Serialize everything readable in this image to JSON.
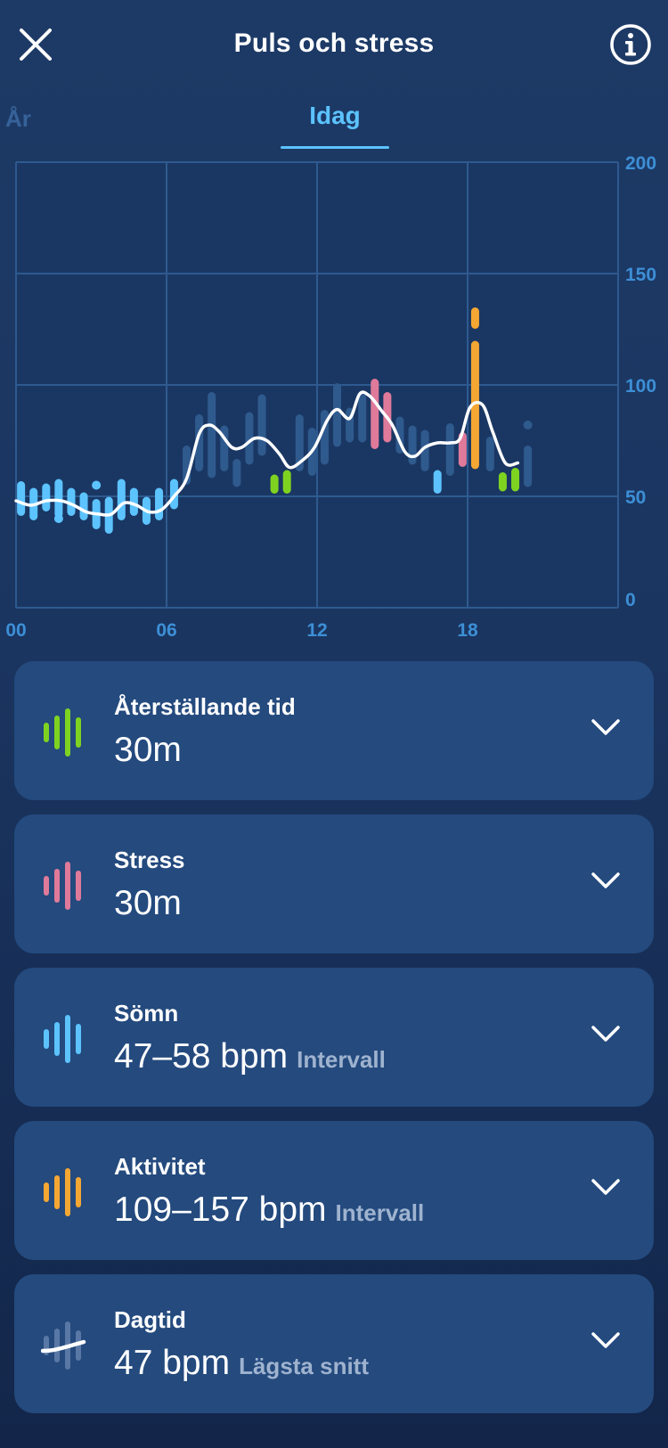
{
  "header": {
    "title": "Puls och stress",
    "close_icon": "close-icon",
    "info_icon": "info-icon"
  },
  "tabs": {
    "previous_label": "År",
    "active_label": "Idag"
  },
  "chart_data": {
    "type": "bar",
    "x_ticks": [
      "00",
      "06",
      "12",
      "18"
    ],
    "y_ticks": [
      "0",
      "50",
      "100",
      "150",
      "200"
    ],
    "ylim": [
      0,
      200
    ],
    "xlim": [
      0,
      24
    ],
    "grid": true,
    "series_colors": {
      "recovery": "#7ed321",
      "stress": "#e07a9a",
      "sleep": "#5cc3ff",
      "activity": "#f5a733",
      "other": "#2f5a8e",
      "daytime_line": "#ffffff"
    },
    "bars": [
      {
        "x": 0.2,
        "low": 43,
        "high": 55,
        "kind": "sleep"
      },
      {
        "x": 0.7,
        "low": 41,
        "high": 52,
        "kind": "sleep"
      },
      {
        "x": 1.2,
        "low": 45,
        "high": 54,
        "kind": "sleep"
      },
      {
        "x": 1.7,
        "low": 42,
        "high": 56,
        "kind": "sleep"
      },
      {
        "x": 2.2,
        "low": 43,
        "high": 52,
        "kind": "sleep"
      },
      {
        "x": 2.7,
        "low": 41,
        "high": 50,
        "kind": "sleep"
      },
      {
        "x": 3.2,
        "low": 37,
        "high": 47,
        "kind": "sleep"
      },
      {
        "x": 3.7,
        "low": 35,
        "high": 48,
        "kind": "sleep"
      },
      {
        "x": 4.2,
        "low": 41,
        "high": 56,
        "kind": "sleep"
      },
      {
        "x": 4.7,
        "low": 43,
        "high": 52,
        "kind": "sleep"
      },
      {
        "x": 5.2,
        "low": 39,
        "high": 48,
        "kind": "sleep"
      },
      {
        "x": 5.7,
        "low": 41,
        "high": 52,
        "kind": "sleep"
      },
      {
        "x": 6.3,
        "low": 46,
        "high": 56,
        "kind": "sleep"
      },
      {
        "x": 6.8,
        "low": 57,
        "high": 71,
        "kind": "other"
      },
      {
        "x": 7.3,
        "low": 63,
        "high": 85,
        "kind": "other"
      },
      {
        "x": 7.8,
        "low": 60,
        "high": 95,
        "kind": "other"
      },
      {
        "x": 8.3,
        "low": 63,
        "high": 80,
        "kind": "other"
      },
      {
        "x": 8.8,
        "low": 56,
        "high": 65,
        "kind": "other"
      },
      {
        "x": 9.3,
        "low": 66,
        "high": 86,
        "kind": "other"
      },
      {
        "x": 9.8,
        "low": 70,
        "high": 94,
        "kind": "other"
      },
      {
        "x": 10.3,
        "low": 53,
        "high": 58,
        "kind": "recovery"
      },
      {
        "x": 10.8,
        "low": 53,
        "high": 60,
        "kind": "recovery"
      },
      {
        "x": 11.3,
        "low": 63,
        "high": 85,
        "kind": "other"
      },
      {
        "x": 11.8,
        "low": 61,
        "high": 79,
        "kind": "other"
      },
      {
        "x": 12.3,
        "low": 66,
        "high": 87,
        "kind": "other"
      },
      {
        "x": 12.8,
        "low": 74,
        "high": 99,
        "kind": "other"
      },
      {
        "x": 13.3,
        "low": 76,
        "high": 88,
        "kind": "other"
      },
      {
        "x": 13.8,
        "low": 76,
        "high": 95,
        "kind": "other"
      },
      {
        "x": 14.3,
        "low": 73,
        "high": 101,
        "kind": "stress"
      },
      {
        "x": 14.8,
        "low": 76,
        "high": 95,
        "kind": "stress"
      },
      {
        "x": 15.3,
        "low": 71,
        "high": 84,
        "kind": "other"
      },
      {
        "x": 15.8,
        "low": 66,
        "high": 80,
        "kind": "other"
      },
      {
        "x": 16.3,
        "low": 63,
        "high": 78,
        "kind": "other"
      },
      {
        "x": 16.8,
        "low": 53,
        "high": 60,
        "kind": "sleep"
      },
      {
        "x": 17.3,
        "low": 61,
        "high": 81,
        "kind": "other"
      },
      {
        "x": 17.8,
        "low": 65,
        "high": 77,
        "kind": "stress"
      },
      {
        "x": 18.3,
        "low": 64,
        "high": 118,
        "kind": "activity"
      },
      {
        "x": 18.3,
        "low": 127,
        "high": 133,
        "kind": "activity"
      },
      {
        "x": 18.9,
        "low": 63,
        "high": 75,
        "kind": "other"
      },
      {
        "x": 19.4,
        "low": 54,
        "high": 59,
        "kind": "recovery"
      },
      {
        "x": 19.9,
        "low": 54,
        "high": 61,
        "kind": "recovery"
      },
      {
        "x": 20.4,
        "low": 56,
        "high": 71,
        "kind": "other"
      }
    ],
    "dots": [
      {
        "x": 1.7,
        "y": 40,
        "kind": "sleep"
      },
      {
        "x": 3.2,
        "y": 55,
        "kind": "sleep"
      },
      {
        "x": 20.4,
        "y": 82,
        "kind": "other"
      }
    ],
    "daytime_line": {
      "x": [
        0,
        0.6,
        1.2,
        1.8,
        2.3,
        2.8,
        3.3,
        3.8,
        4.3,
        4.8,
        5.3,
        5.8,
        6.3,
        6.8,
        7.3,
        7.7,
        8.1,
        8.6,
        9.0,
        9.5,
        10.0,
        10.5,
        10.9,
        11.4,
        11.9,
        12.4,
        12.8,
        13.3,
        13.7,
        14.1,
        14.6,
        15.0,
        15.5,
        15.9,
        16.3,
        16.8,
        17.3,
        17.7,
        18.1,
        18.6,
        19.0,
        19.5,
        20.0
      ],
      "y": [
        48,
        46,
        48,
        48,
        46,
        43,
        42,
        42,
        47,
        46,
        43,
        44,
        50,
        58,
        78,
        82,
        79,
        72,
        72,
        76,
        75,
        69,
        63,
        66,
        72,
        84,
        89,
        85,
        96,
        95,
        88,
        82,
        70,
        68,
        72,
        74,
        74,
        76,
        90,
        91,
        79,
        65,
        65
      ]
    }
  },
  "cards": [
    {
      "label": "Återställande tid",
      "value": "30m",
      "suffix": "",
      "icon": "recovery-bars-icon",
      "color": "#7ed321"
    },
    {
      "label": "Stress",
      "value": "30m",
      "suffix": "",
      "icon": "stress-bars-icon",
      "color": "#e07a9a"
    },
    {
      "label": "Sömn",
      "value": "47–58 bpm",
      "suffix": "Intervall",
      "icon": "sleep-bars-icon",
      "color": "#5cc3ff"
    },
    {
      "label": "Aktivitet",
      "value": "109–157 bpm",
      "suffix": "Intervall",
      "icon": "activity-bars-icon",
      "color": "#f5a733"
    },
    {
      "label": "Dagtid",
      "value": "47 bpm",
      "suffix": "Lägsta snitt",
      "icon": "daytime-line-icon",
      "color": "#ffffff"
    }
  ]
}
